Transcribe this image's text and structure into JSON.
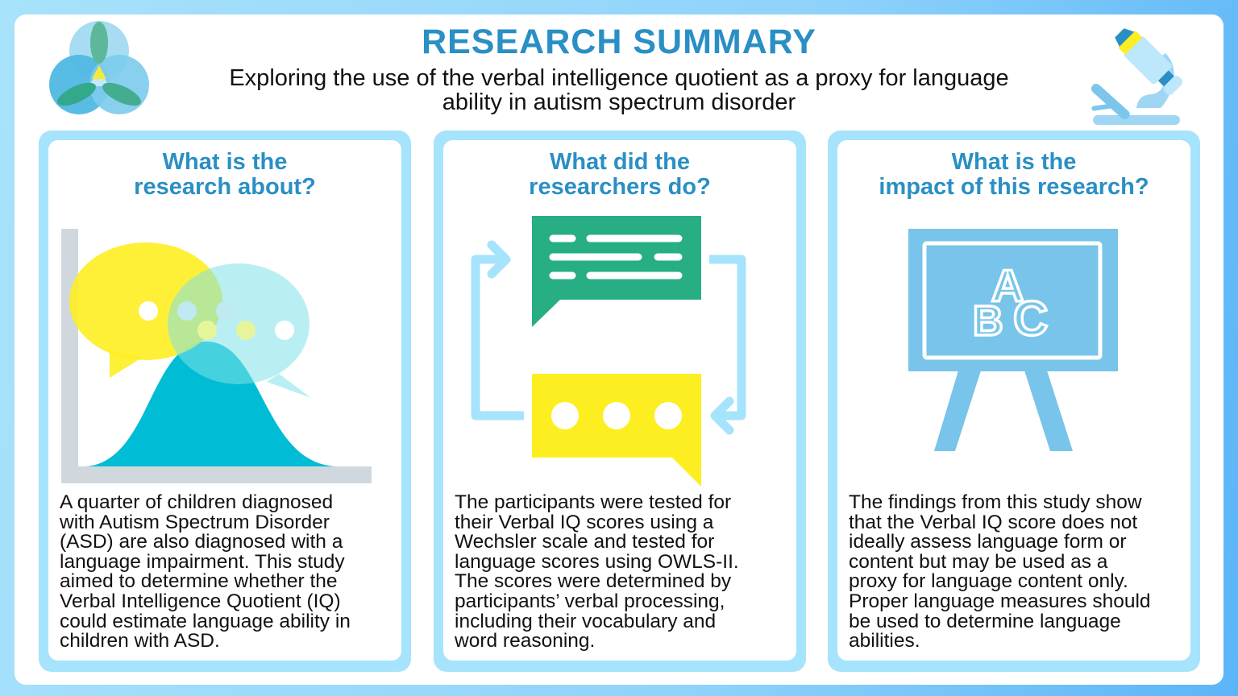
{
  "header": {
    "title": "RESEARCH SUMMARY",
    "subtitle_lines": [
      "Exploring the use of the verbal intelligence quotient as a proxy for language",
      "ability in autism spectrum disorder"
    ],
    "logo_icon": "trefoil-logo-icon",
    "decor_icon": "microscope-icon"
  },
  "colors": {
    "accent": "#2a8fc4",
    "card_border": "#a6e3fc",
    "green": "#27ae84",
    "yellow": "#fdee21",
    "teal": "#00bcd4"
  },
  "cards": [
    {
      "heading_lines": [
        "What is the",
        "research about?"
      ],
      "icon": "speech-bubbles-bell-curve-icon",
      "body_lines": [
        "A quarter of children diagnosed",
        "with Autism Spectrum Disorder",
        "(ASD) are also diagnosed with a",
        "language impairment. This study",
        "aimed to determine whether the",
        "Verbal Intelligence Quotient (IQ)",
        "could estimate language ability in",
        "children with ASD."
      ]
    },
    {
      "heading_lines": [
        "What did the",
        "researchers do?"
      ],
      "icon": "conversation-cycle-icon",
      "body_lines": [
        "The participants were tested for",
        "their Verbal IQ scores using a",
        "Wechsler scale and tested for",
        "language scores using OWLS-II.",
        "The scores were determined by",
        "participants’ verbal processing,",
        "including their vocabulary and",
        "word reasoning."
      ]
    },
    {
      "heading_lines": [
        "What is the",
        "impact of this research?"
      ],
      "icon": "abc-chalkboard-icon",
      "board_letters": [
        "A",
        "B",
        "C"
      ],
      "body_lines": [
        "The findings from this study show",
        "that the Verbal IQ score does not",
        "ideally assess language form or",
        "content but may be used as a",
        "proxy for language content only.",
        "Proper language measures should",
        "be used to determine language",
        "abilities."
      ]
    }
  ]
}
